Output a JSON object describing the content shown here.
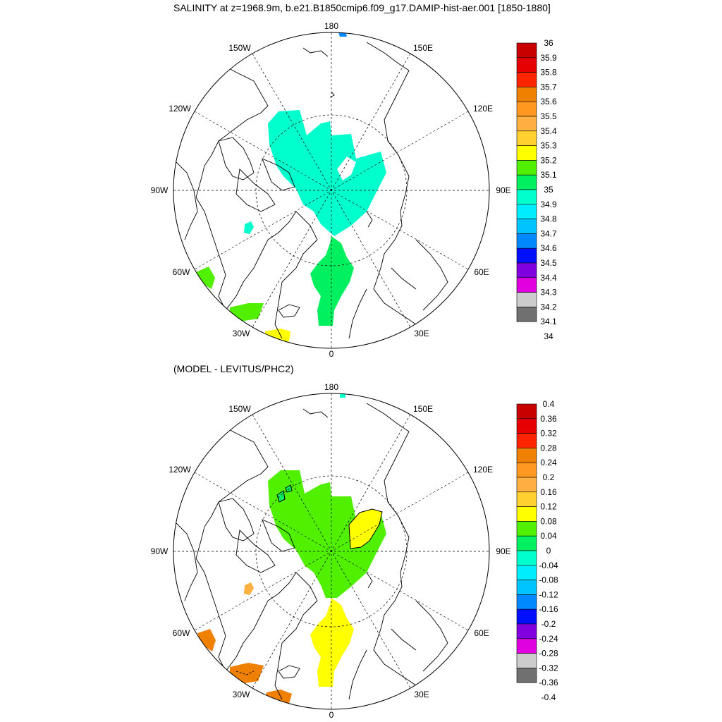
{
  "title": "SALINITY at z=1968.9m, b.e21.B1850cmip6.f09_g17.DAMIP-hist-aer.001 [1850-1880]",
  "subtitle": "(MODEL - LEVITUS/PHC2)",
  "longitude_labels": {
    "lon_180": "180",
    "lon_150W": "150W",
    "lon_150E": "150E",
    "lon_120W": "120W",
    "lon_120E": "120E",
    "lon_90W": "90W",
    "lon_90E": "90E",
    "lon_60W": "60W",
    "lon_60E": "60E",
    "lon_30W": "30W",
    "lon_30E": "30E",
    "lon_0": "0"
  },
  "colorbar_top": {
    "labels": [
      "36",
      "35.9",
      "35.8",
      "35.7",
      "35.6",
      "35.5",
      "35.4",
      "35.3",
      "35.2",
      "35.1",
      "35",
      "34.9",
      "34.8",
      "34.7",
      "34.6",
      "34.5",
      "34.4",
      "34.3",
      "34.2",
      "34.1",
      "34"
    ],
    "colors": [
      "#c80000",
      "#e60000",
      "#ff2400",
      "#f08000",
      "#ff9820",
      "#ffb040",
      "#ffd030",
      "#ffff00",
      "#50f000",
      "#00f060",
      "#00ffcc",
      "#00ecff",
      "#00c4ff",
      "#0088ff",
      "#0010ff",
      "#8000e0",
      "#e000e0",
      "#cccccc",
      "#707070"
    ]
  },
  "colorbar_bottom": {
    "labels": [
      "0.4",
      "0.36",
      "0.32",
      "0.28",
      "0.24",
      "0.2",
      "0.16",
      "0.12",
      "0.08",
      "0.04",
      "0",
      "-0.04",
      "-0.08",
      "-0.12",
      "-0.16",
      "-0.2",
      "-0.24",
      "-0.28",
      "-0.32",
      "-0.36",
      "-0.4"
    ],
    "colors": [
      "#c80000",
      "#e60000",
      "#ff2400",
      "#f08000",
      "#ff9820",
      "#ffb040",
      "#ffd030",
      "#ffff00",
      "#50f000",
      "#00f060",
      "#00ffcc",
      "#00ecff",
      "#00c4ff",
      "#0088ff",
      "#0010ff",
      "#8000e0",
      "#e000e0",
      "#cccccc",
      "#707070"
    ]
  }
}
